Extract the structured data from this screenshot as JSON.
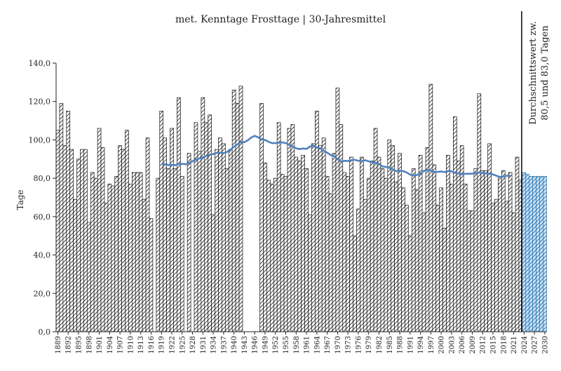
{
  "chart_data": {
    "type": "bar",
    "title": "met. Kenntage Frosttage | 30-Jahresmittel",
    "ylabel": "Tage",
    "xlabel": "",
    "ylim": [
      0,
      140
    ],
    "y_ticks": [
      "0,0",
      "20,0",
      "40,0",
      "60,0",
      "80,0",
      "100,0",
      "120,0",
      "140,0"
    ],
    "x_tick_labels": [
      "1889",
      "1892",
      "1895",
      "1898",
      "1901",
      "1904",
      "1907",
      "1910",
      "1913",
      "1916",
      "1919",
      "1922",
      "1925",
      "1928",
      "1931",
      "1934",
      "1937",
      "1940",
      "1943",
      "1946",
      "1949",
      "1952",
      "1955",
      "1958",
      "1961",
      "1964",
      "1967",
      "1970",
      "1973",
      "1976",
      "1979",
      "1982",
      "1985",
      "1988",
      "1991",
      "1994",
      "1997",
      "2000",
      "2003",
      "2006",
      "2009",
      "2012",
      "2015",
      "2018",
      "2021",
      "2024",
      "2027",
      "2030"
    ],
    "grid": "horizontal",
    "series": [
      {
        "name": "",
        "type": "bar",
        "start_year": 1889,
        "values": [
          105,
          119,
          97,
          115,
          95,
          69,
          90,
          95,
          95,
          57,
          83,
          80,
          106,
          96,
          67,
          77,
          76,
          81,
          97,
          95,
          105,
          77,
          83,
          83,
          83,
          69,
          101,
          59,
          null,
          80,
          115,
          101,
          85,
          106,
          85,
          122,
          81,
          null,
          93,
          null,
          109,
          94,
          122,
          109,
          113,
          61,
          95,
          101,
          98,
          85,
          95,
          126,
          119,
          128,
          null,
          null,
          null,
          null,
          null,
          119,
          88,
          79,
          77,
          80,
          109,
          82,
          81,
          106,
          108,
          91,
          89,
          92,
          85,
          61,
          98,
          115,
          97,
          101,
          81,
          72,
          93,
          127,
          108,
          83,
          81,
          91,
          50,
          64,
          91,
          69,
          80,
          89,
          106,
          91,
          85,
          80,
          100,
          97,
          78,
          93,
          75,
          66,
          50,
          85,
          74,
          92,
          62,
          96,
          129,
          87,
          66,
          75,
          54,
          92,
          77,
          112,
          89,
          97,
          77,
          63,
          63,
          85,
          124,
          84,
          84,
          98,
          67,
          69,
          81,
          84,
          68,
          83,
          62,
          91,
          79,
          65,
          55
        ],
        "color": "#ffffff",
        "pattern": "diagonal-hatch"
      },
      {
        "name": "",
        "type": "bar",
        "start_year": 2024,
        "values": [
          83,
          82,
          81,
          81,
          81,
          81,
          81
        ],
        "color": "#1e6fb0",
        "pattern": "diagonal-hatch"
      },
      {
        "name": "",
        "type": "line",
        "start_year": 1919,
        "values": [
          87.5,
          87.3,
          86.9,
          87.0,
          86.8,
          87.4,
          87.5,
          87.3,
          88.0,
          88.9,
          89.8,
          90.3,
          90.9,
          91.6,
          92.3,
          92.6,
          93.2,
          93.4,
          93.1,
          93.7,
          94.8,
          96.5,
          97.6,
          98.9,
          98.8,
          99.8,
          101.2,
          102.1,
          101.3,
          100.3,
          99.9,
          99.0,
          98.3,
          98.3,
          98.5,
          98.7,
          98.3,
          97.4,
          96.6,
          95.6,
          95.2,
          95.5,
          95.3,
          96.5,
          97.0,
          96.0,
          95.6,
          94.3,
          93.3,
          92.1,
          91.5,
          89.9,
          88.7,
          89.1,
          89.0,
          89.4,
          89.6,
          89.1,
          88.9,
          89.4,
          88.8,
          88.4,
          88.0,
          87.5,
          86.1,
          85.9,
          85.4,
          84.6,
          83.6,
          84.0,
          83.7,
          83.0,
          81.9,
          81.4,
          81.7,
          82.5,
          83.8,
          84.3,
          84.0,
          83.3,
          83.3,
          83.5,
          83.2,
          83.8,
          83.6,
          82.8,
          82.5,
          82.0,
          82.3,
          82.3,
          82.4,
          82.6,
          83.0,
          82.6,
          82.5,
          82.4,
          82.0,
          81.3,
          80.6,
          80.8,
          81.3,
          81.4
        ],
        "color": "#4f81bd"
      }
    ],
    "annotations": [
      {
        "text": "Durchschnittswert zw.",
        "orientation": "vertical"
      },
      {
        "text": "80,5 und 83,0 Tagen",
        "orientation": "vertical"
      }
    ],
    "marker_line_year": 2024
  }
}
